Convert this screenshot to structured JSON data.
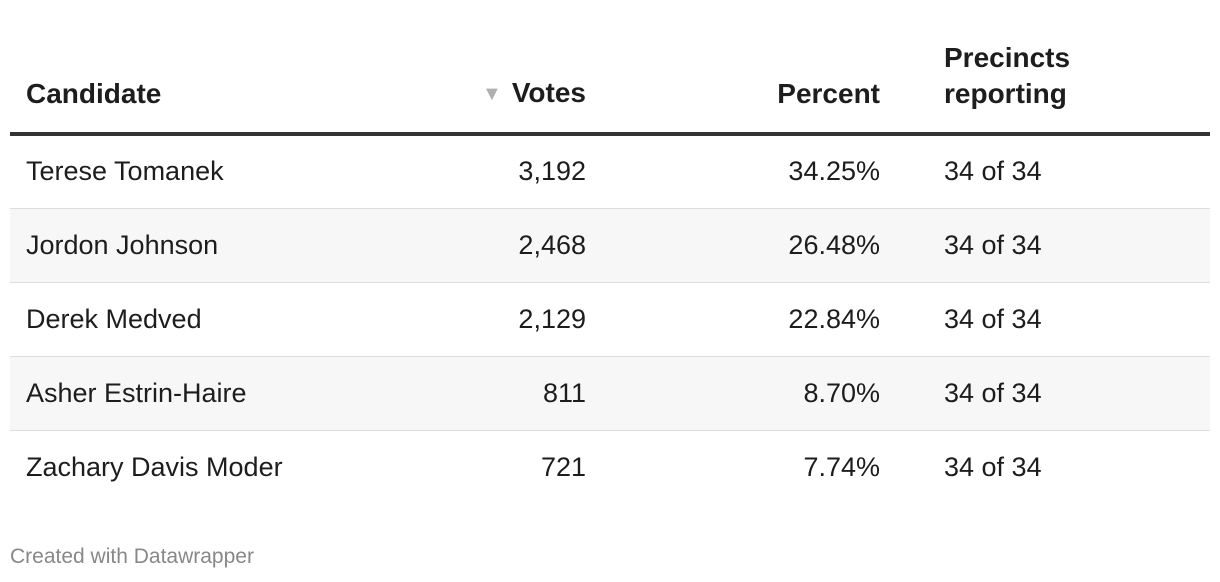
{
  "table": {
    "headers": {
      "candidate": "Candidate",
      "votes": "Votes",
      "percent": "Percent",
      "precincts_line1": "Precincts",
      "precincts_line2": "reporting"
    },
    "sort_icon": "▼",
    "rows": [
      {
        "candidate": "Terese Tomanek",
        "votes": "3,192",
        "percent": "34.25%",
        "precincts": "34 of 34"
      },
      {
        "candidate": "Jordon Johnson",
        "votes": "2,468",
        "percent": "26.48%",
        "precincts": "34 of 34"
      },
      {
        "candidate": "Derek Medved",
        "votes": "2,129",
        "percent": "22.84%",
        "precincts": "34 of 34"
      },
      {
        "candidate": "Asher Estrin-Haire",
        "votes": "811",
        "percent": "8.70%",
        "precincts": "34 of 34"
      },
      {
        "candidate": "Zachary Davis Moder",
        "votes": "721",
        "percent": "7.74%",
        "precincts": "34 of 34"
      }
    ]
  },
  "footer": {
    "credit": "Created with Datawrapper"
  },
  "colors": {
    "header_rule": "#333333",
    "row_stripe": "#f7f7f7",
    "row_divider": "#dddddd",
    "sort_icon": "#b0b0b0",
    "footer_text": "#888888"
  }
}
